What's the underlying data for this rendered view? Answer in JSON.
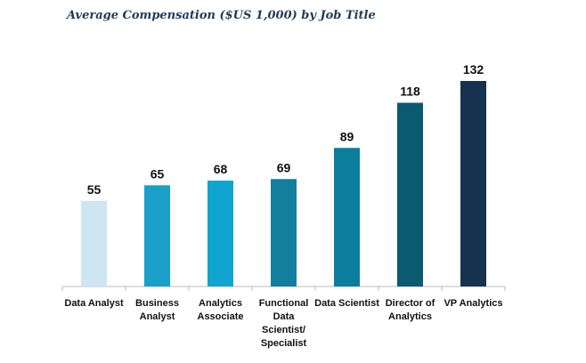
{
  "chart_data": {
    "type": "bar",
    "title": "Average Compensation ($US 1,000) by Job Title",
    "categories": [
      [
        "Data Analyst"
      ],
      [
        "Business",
        "Analyst"
      ],
      [
        "Analytics",
        "Associate"
      ],
      [
        "Functional",
        "Data",
        "Scientist/",
        "Specialist"
      ],
      [
        "Data Scientist"
      ],
      [
        "Director of",
        "Analytics"
      ],
      [
        "VP Analytics"
      ]
    ],
    "values": [
      55,
      65,
      68,
      69,
      89,
      118,
      132
    ],
    "colors": [
      "#cde6f1",
      "#1a9fc9",
      "#0fa5cf",
      "#137f9e",
      "#0b7e9e",
      "#0a5a70",
      "#17324f"
    ],
    "xlabel": "",
    "ylabel": "",
    "ylim": [
      0,
      132
    ],
    "grid": false,
    "legend": "none"
  }
}
